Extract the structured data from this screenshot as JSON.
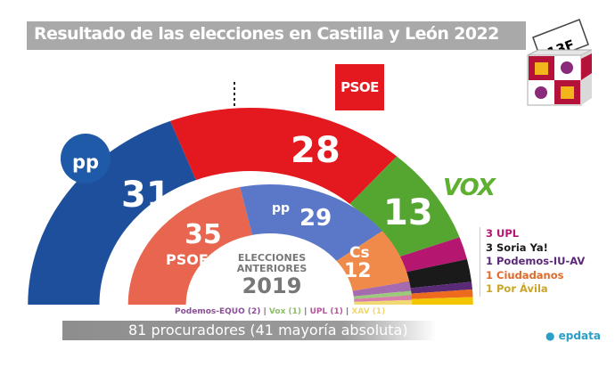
{
  "title": "Resultado de las elecciones en Castilla  y León 2022",
  "ballot_label": "13F",
  "logos": {
    "psoe": "PSOE",
    "pp": "pp",
    "vox": "VOX",
    "epdata": "epdata"
  },
  "center": {
    "line1": "ELECCIONES",
    "line2": "ANTERIORES",
    "year": "2019"
  },
  "footer": "81 procuradores (41 mayoría absoluta)",
  "chart_data": [
    {
      "type": "hemicycle",
      "title": "2022",
      "total": 81,
      "majority": 41,
      "series": [
        {
          "name": "PP",
          "value": 31,
          "color": "#1e4f9c"
        },
        {
          "name": "PSOE",
          "value": 28,
          "color": "#e3191f"
        },
        {
          "name": "Vox",
          "value": 13,
          "color": "#55a630"
        },
        {
          "name": "UPL",
          "value": 3,
          "color": "#b5166f"
        },
        {
          "name": "Soria Ya!",
          "value": 3,
          "color": "#1a1a1a"
        },
        {
          "name": "Podemos-IU-AV",
          "value": 1,
          "color": "#5b2a77"
        },
        {
          "name": "Ciudadanos",
          "value": 1,
          "color": "#ee6a1f"
        },
        {
          "name": "Por Ávila",
          "value": 1,
          "color": "#f2c500"
        }
      ]
    },
    {
      "type": "hemicycle",
      "title": "ELECCIONES ANTERIORES 2019",
      "total": 81,
      "series": [
        {
          "name": "PSOE",
          "value": 35,
          "color": "#e8664f"
        },
        {
          "name": "PP",
          "value": 29,
          "color": "#5b78c8"
        },
        {
          "name": "Cs",
          "value": 12,
          "color": "#f08a4b"
        },
        {
          "name": "Podemos-EQUO",
          "value": 2,
          "color": "#a66ab0"
        },
        {
          "name": "Vox",
          "value": 1,
          "color": "#9cc97a"
        },
        {
          "name": "UPL",
          "value": 1,
          "color": "#d77cab"
        },
        {
          "name": "XAV",
          "value": 1,
          "color": "#f0d872"
        }
      ]
    }
  ],
  "legend": [
    {
      "seats": "3",
      "name": "UPL",
      "color": "#b5166f"
    },
    {
      "seats": "3",
      "name": "Soria Ya!",
      "color": "#1a1a1a"
    },
    {
      "seats": "1",
      "name": "Podemos-IU-AV",
      "color": "#5b2a77"
    },
    {
      "seats": "1",
      "name": "Ciudadanos",
      "color": "#e06a2a"
    },
    {
      "seats": "1",
      "name": "Por Ávila",
      "color": "#c9a52a"
    }
  ],
  "prev_small": [
    {
      "text": "Podemos-EQUO (2)",
      "color": "#8a4f96"
    },
    {
      "text": "Vox (1)",
      "color": "#8dbd6a"
    },
    {
      "text": "UPL (1)",
      "color": "#b5569a"
    },
    {
      "text": "XAV (1)",
      "color": "#f0d872"
    }
  ],
  "labels": {
    "pp22": "31",
    "psoe22": "28",
    "vox22": "13",
    "psoe19": "35",
    "psoe19_name": "PSOE",
    "pp19": "29",
    "cs19_name": "Cs",
    "cs19": "12"
  }
}
